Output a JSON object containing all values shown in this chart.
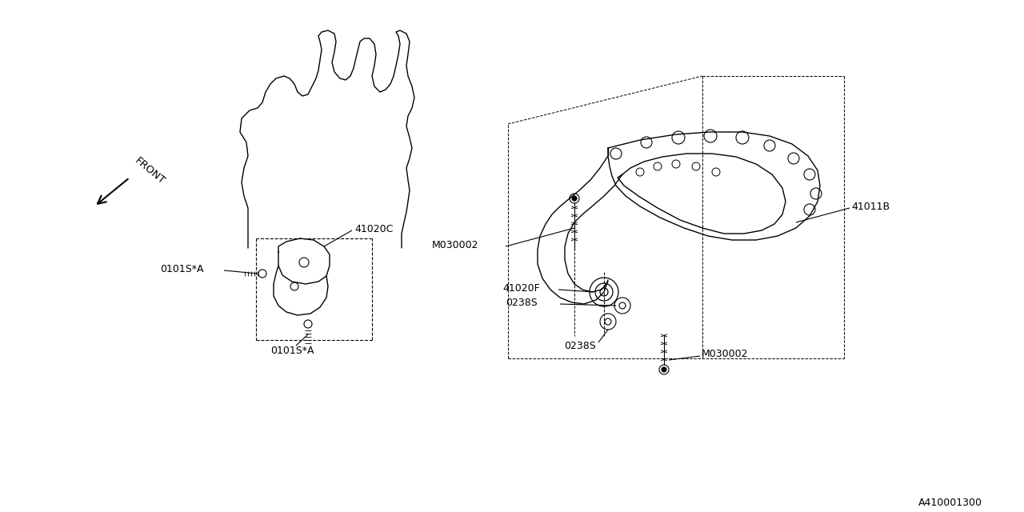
{
  "background_color": "#ffffff",
  "line_color": "#000000",
  "diagram_id": "A410001300",
  "labels": {
    "front": "FRONT",
    "41020C": "41020C",
    "0101SA_left": "0101S*A",
    "0101SA_bottom": "0101S*A",
    "41011B": "41011B",
    "M030002_top": "M030002",
    "M030002_bottom": "M030002",
    "41020F": "41020F",
    "0238S_top": "0238S",
    "0238S_bottom": "0238S"
  }
}
